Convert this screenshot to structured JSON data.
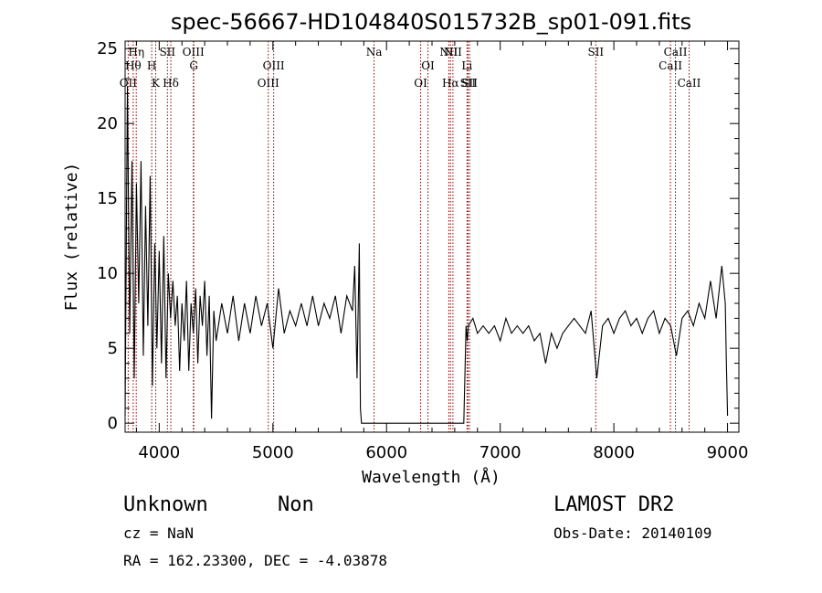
{
  "chart_data": {
    "type": "line",
    "title": "spec-56667-HD104840S015732B_sp01-091.fits",
    "xlabel": "Wavelength (Å)",
    "ylabel": "Flux (relative)",
    "xlim": [
      3700,
      9100
    ],
    "ylim": [
      -0.6,
      25.5
    ],
    "x_ticks": [
      4000,
      5000,
      6000,
      7000,
      8000,
      9000
    ],
    "y_ticks": [
      0,
      5,
      10,
      15,
      20,
      25
    ],
    "line_color": "#000000",
    "marker_color": "#8b0000",
    "spectral_lines": [
      {
        "label": "OII",
        "wavelength": 3727,
        "row": 3
      },
      {
        "label": "Hθ",
        "wavelength": 3771,
        "row": 2
      },
      {
        "label": "Hη",
        "wavelength": 3798,
        "row": 1
      },
      {
        "label": "H",
        "wavelength": 3934,
        "row": 2
      },
      {
        "label": "K",
        "wavelength": 3969,
        "row": 3
      },
      {
        "label": "SII",
        "wavelength": 4072,
        "row": 1
      },
      {
        "label": "Hδ",
        "wavelength": 4102,
        "row": 3
      },
      {
        "label": "OIII",
        "wavelength": 4300,
        "row": 1
      },
      {
        "label": "G",
        "wavelength": 4304,
        "row": 2
      },
      {
        "label": "OIII",
        "wavelength": 4959,
        "row": 3
      },
      {
        "label": "OIII",
        "wavelength": 5007,
        "row": 2
      },
      {
        "label": "Na",
        "wavelength": 5890,
        "row": 1
      },
      {
        "label": "OI",
        "wavelength": 6300,
        "row": 3
      },
      {
        "label": "OI",
        "wavelength": 6364,
        "row": 2
      },
      {
        "label": "NII",
        "wavelength": 6548,
        "row": 1
      },
      {
        "label": "Hα",
        "wavelength": 6563,
        "row": 3
      },
      {
        "label": "NII",
        "wavelength": 6584,
        "row": 1
      },
      {
        "label": "Li",
        "wavelength": 6708,
        "row": 2
      },
      {
        "label": "SII",
        "wavelength": 6717,
        "row": 3
      },
      {
        "label": "SII",
        "wavelength": 6731,
        "row": 3
      },
      {
        "label": "SII",
        "wavelength": 7841,
        "row": 1
      },
      {
        "label": "CaII",
        "wavelength": 8498,
        "row": 2
      },
      {
        "label": "CaII",
        "wavelength": 8542,
        "row": 1
      },
      {
        "label": "CaII",
        "wavelength": 8662,
        "row": 3
      }
    ],
    "series": [
      {
        "x": [
          3700,
          3720,
          3740,
          3760,
          3780,
          3800,
          3820,
          3840,
          3860,
          3880,
          3900,
          3920,
          3940,
          3960,
          3980,
          4000,
          4020,
          4040,
          4060,
          4080,
          4100,
          4120,
          4140,
          4160,
          4180,
          4200,
          4220,
          4240,
          4260,
          4280,
          4300,
          4320,
          4340,
          4360,
          4380,
          4400,
          4420,
          4440,
          4460,
          4480,
          4500,
          4550,
          4600,
          4650,
          4700,
          4750,
          4800,
          4850,
          4900,
          4950,
          5000,
          5050,
          5100,
          5150,
          5200,
          5250,
          5300,
          5350,
          5400,
          5450,
          5500,
          5550,
          5600,
          5650,
          5700,
          5720,
          5740,
          5760,
          5770,
          5780,
          6000,
          6200,
          6400,
          6600,
          6680,
          6700,
          6710,
          6720,
          6760,
          6800,
          6850,
          6900,
          6950,
          7000,
          7050,
          7100,
          7150,
          7200,
          7250,
          7300,
          7350,
          7400,
          7450,
          7500,
          7550,
          7600,
          7650,
          7700,
          7750,
          7800,
          7850,
          7900,
          7950,
          8000,
          8050,
          8100,
          8150,
          8200,
          8250,
          8300,
          8350,
          8400,
          8450,
          8500,
          8550,
          8600,
          8650,
          8700,
          8750,
          8800,
          8850,
          8900,
          8950,
          8980,
          8990,
          9000
        ],
        "y": [
          0.5,
          22.5,
          6.0,
          17.5,
          3.0,
          16.0,
          8.0,
          17.5,
          4.5,
          14.5,
          6.5,
          16.5,
          2.5,
          12.0,
          5.0,
          11.5,
          4.0,
          12.5,
          3.0,
          10.0,
          7.0,
          9.5,
          6.5,
          8.5,
          3.5,
          8.0,
          5.5,
          9.5,
          3.5,
          8.0,
          6.0,
          9.0,
          4.0,
          8.5,
          6.5,
          9.5,
          4.5,
          8.5,
          0.3,
          7.5,
          5.5,
          8.0,
          6.0,
          8.5,
          5.5,
          8.0,
          6.0,
          8.5,
          6.5,
          8.0,
          5.0,
          9.0,
          6.0,
          7.5,
          6.5,
          8.0,
          6.5,
          8.5,
          6.5,
          8.0,
          7.0,
          8.5,
          6.0,
          8.5,
          7.5,
          10.5,
          3.0,
          12.0,
          1.0,
          0.0,
          0.0,
          0.0,
          0.0,
          0.0,
          0.0,
          6.5,
          5.5,
          6.5,
          7.0,
          6.0,
          6.5,
          6.0,
          6.5,
          5.5,
          7.0,
          6.0,
          6.5,
          6.0,
          6.5,
          5.5,
          6.0,
          4.0,
          6.0,
          5.0,
          6.0,
          6.5,
          7.0,
          6.5,
          6.0,
          7.5,
          3.0,
          6.5,
          7.0,
          6.0,
          7.0,
          7.5,
          6.5,
          7.0,
          6.0,
          7.0,
          7.5,
          6.0,
          7.0,
          6.5,
          4.5,
          7.0,
          7.5,
          6.5,
          8.0,
          7.0,
          9.5,
          7.0,
          10.5,
          8.0,
          4.0,
          0.5
        ]
      }
    ]
  },
  "info": {
    "object_name": "Unknown",
    "object_class": "Non",
    "survey": "LAMOST DR2",
    "cz": "cz = NaN",
    "obs_date": "Obs-Date: 20140109",
    "coords": "RA = 162.23300, DEC =  -4.03878"
  }
}
